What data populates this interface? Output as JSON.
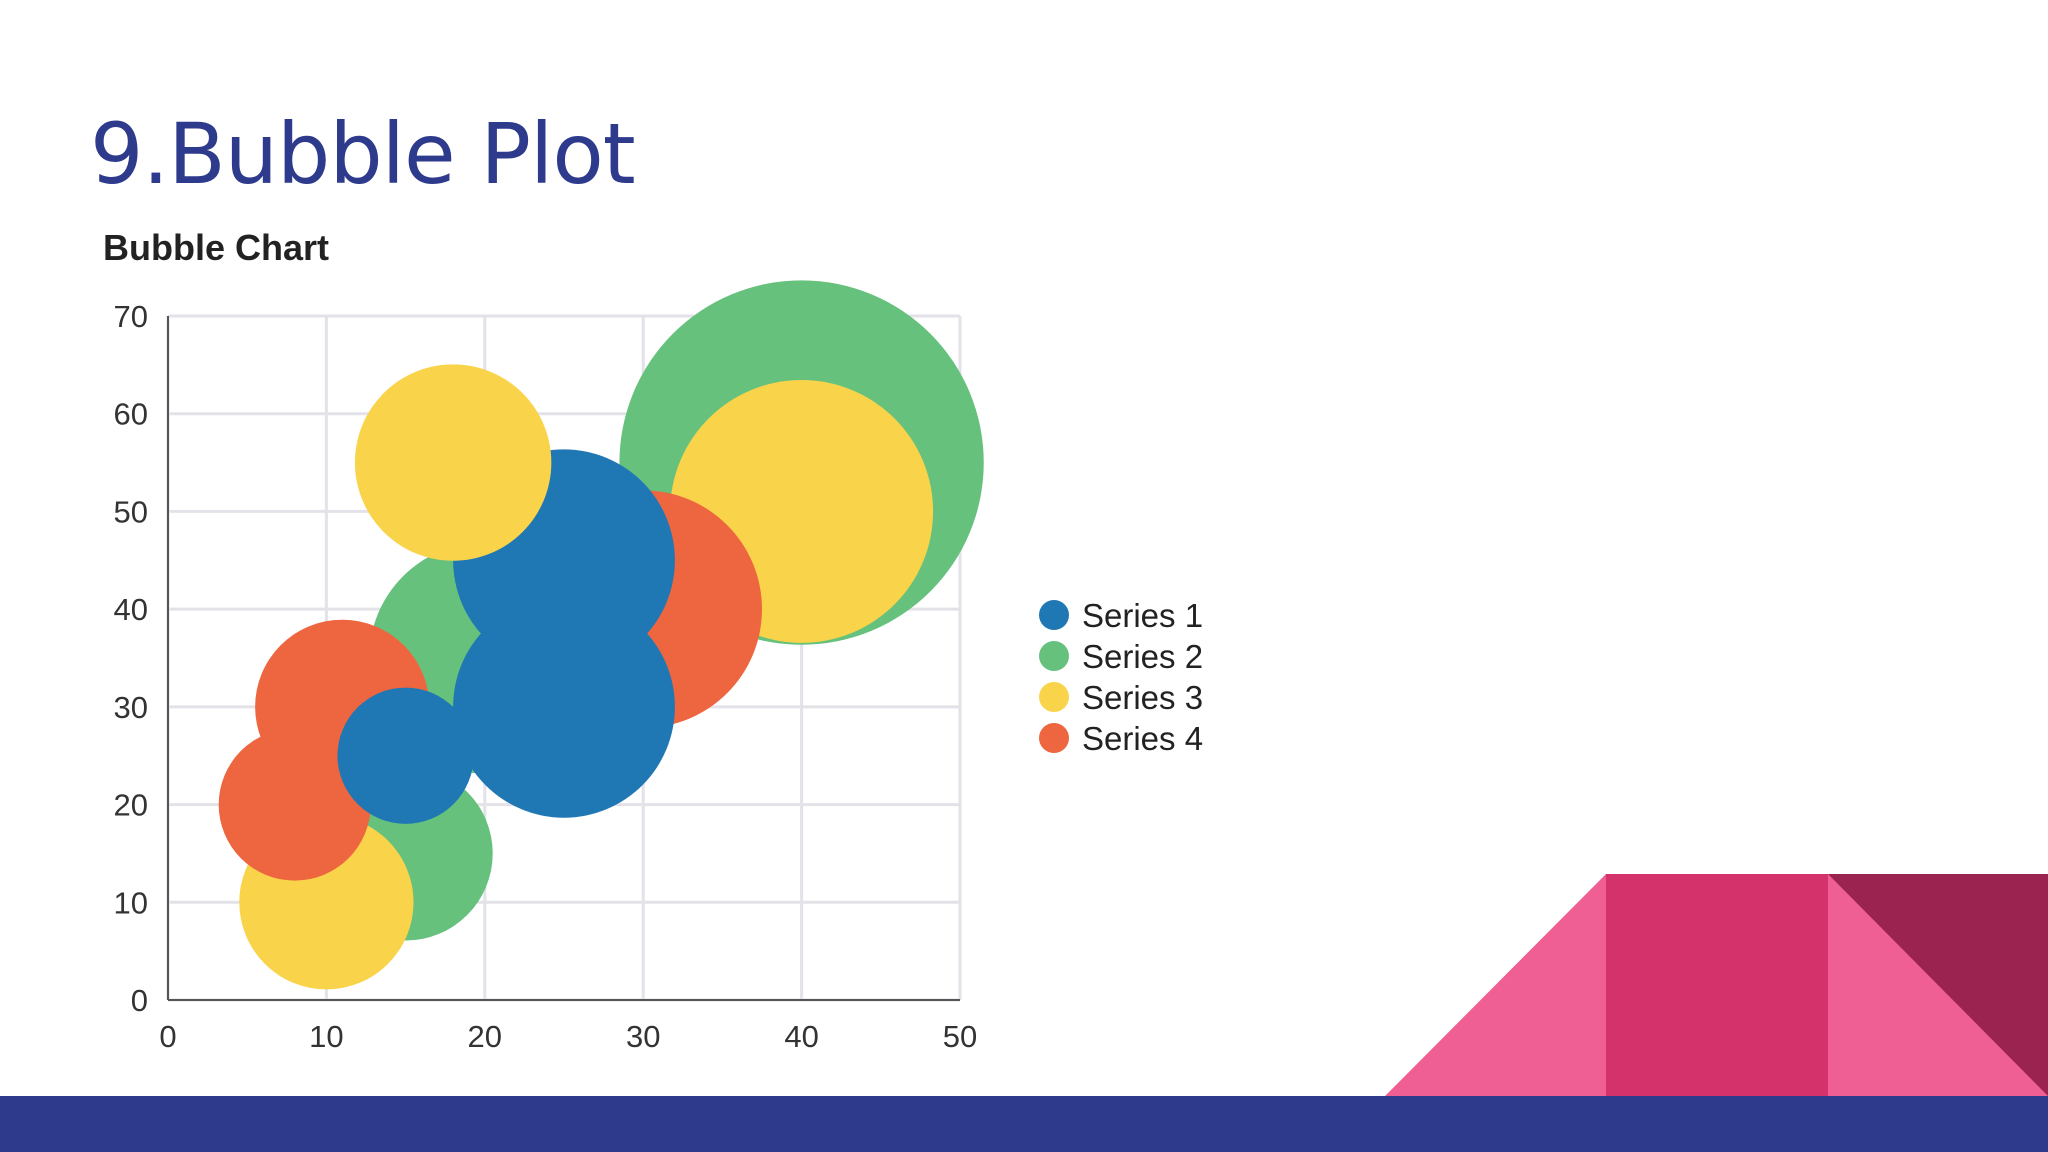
{
  "slide": {
    "title": "9.Bubble Plot"
  },
  "colors": {
    "title": "#2e3a8c",
    "bottom_bar": "#2e3a8c",
    "deco_light_pink": "#ef5f93",
    "deco_mid_pink": "#d4326a",
    "deco_dark": "#9a2350"
  },
  "chart_data": {
    "type": "scatter",
    "variant": "bubble",
    "title": "Bubble Chart",
    "xlabel": "",
    "ylabel": "",
    "xlim": [
      0,
      50
    ],
    "ylim": [
      0,
      70
    ],
    "x_ticks": [
      "0",
      "10",
      "20",
      "30",
      "40",
      "50"
    ],
    "y_ticks": [
      "0",
      "10",
      "20",
      "30",
      "40",
      "50",
      "60",
      "70"
    ],
    "grid": true,
    "legend_position": "right",
    "series": [
      {
        "name": "Series 1",
        "color": "#1f77b4",
        "points": [
          {
            "x": 25,
            "y": 45,
            "r": 7
          },
          {
            "x": 25,
            "y": 30,
            "r": 7
          },
          {
            "x": 15,
            "y": 25,
            "r": 4.3
          }
        ]
      },
      {
        "name": "Series 2",
        "color": "#66c17d",
        "points": [
          {
            "x": 40,
            "y": 55,
            "r": 11.5
          },
          {
            "x": 20,
            "y": 35,
            "r": 7.3
          },
          {
            "x": 15,
            "y": 15,
            "r": 5.5
          }
        ]
      },
      {
        "name": "Series 3",
        "color": "#f9d44a",
        "points": [
          {
            "x": 18,
            "y": 55,
            "r": 6.2
          },
          {
            "x": 40,
            "y": 50,
            "r": 8.3
          },
          {
            "x": 10,
            "y": 10,
            "r": 5.5
          }
        ]
      },
      {
        "name": "Series 4",
        "color": "#ee6640",
        "points": [
          {
            "x": 30,
            "y": 40,
            "r": 7.5
          },
          {
            "x": 11,
            "y": 30,
            "r": 5.5
          },
          {
            "x": 8,
            "y": 20,
            "r": 4.8
          }
        ]
      }
    ]
  }
}
